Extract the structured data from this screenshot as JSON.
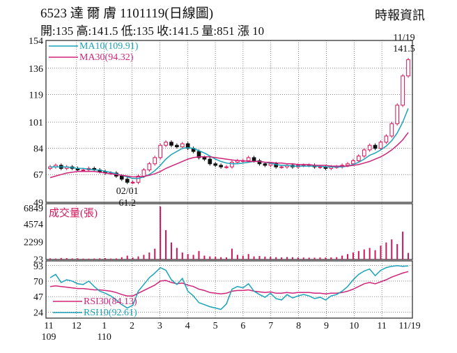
{
  "header": {
    "title": "6523 達 爾 膚 1101119(日線圖)",
    "source": "時報資訊",
    "ohlc": "開:135 高:141.5 低:135 收:141.5 量:851 漲 10"
  },
  "colors": {
    "up": "#d4145a",
    "down": "#111111",
    "ma10": "#1aa3b8",
    "ma30": "#d0237a",
    "rsi30": "#d0237a",
    "rsi10": "#1aa3b8",
    "volume": "#d4145a",
    "grid": "#222222"
  },
  "chart_data": [
    {
      "type": "candlestick",
      "panel": "price",
      "y_ticks": [
        154,
        136,
        119,
        101,
        84,
        67,
        49
      ],
      "ylim": [
        49,
        154
      ],
      "legend": [
        {
          "label": "MA10(109.91)",
          "color": "#1aa3b8"
        },
        {
          "label": "MA30(94.32)",
          "color": "#d0237a"
        }
      ],
      "annotations": [
        {
          "date_label": "02/01",
          "value_label": "61.2",
          "kind": "low"
        },
        {
          "date_label": "11/19",
          "value_label": "141.5",
          "kind": "high"
        }
      ],
      "months": [
        {
          "label": "11",
          "year": "109"
        },
        {
          "label": "12",
          "year": ""
        },
        {
          "label": "1",
          "year": "110"
        },
        {
          "label": "2",
          "year": ""
        },
        {
          "label": "3",
          "year": ""
        },
        {
          "label": "4",
          "year": ""
        },
        {
          "label": "5",
          "year": ""
        },
        {
          "label": "6",
          "year": ""
        },
        {
          "label": "7",
          "year": ""
        },
        {
          "label": "8",
          "year": ""
        },
        {
          "label": "9",
          "year": ""
        },
        {
          "label": "10",
          "year": ""
        },
        {
          "label": "11",
          "year": ""
        },
        {
          "label": "11/19",
          "year": ""
        }
      ],
      "series": [
        {
          "name": "close",
          "values": [
            72,
            73,
            71,
            72,
            71,
            70,
            70,
            71,
            70,
            69,
            68,
            68,
            66,
            64,
            62,
            62,
            66,
            70,
            74,
            78,
            86,
            88,
            86,
            85,
            87,
            84,
            82,
            78,
            77,
            74,
            73,
            72,
            72,
            75,
            76,
            76,
            78,
            76,
            74,
            73,
            74,
            72,
            72,
            73,
            72,
            73,
            73,
            73,
            72,
            72,
            71,
            72,
            72,
            73,
            74,
            76,
            79,
            83,
            86,
            84,
            88,
            92,
            100,
            112,
            131,
            141.5
          ]
        },
        {
          "name": "MA10",
          "values": [
            72,
            72,
            72,
            72,
            71.5,
            71,
            71,
            70.5,
            70,
            70,
            69,
            68.5,
            67.5,
            66.5,
            65.5,
            64.5,
            64.5,
            65.5,
            67,
            69.5,
            73,
            77,
            80,
            82,
            84,
            84.5,
            84,
            82.5,
            81,
            79,
            77,
            75.5,
            74.5,
            74,
            74,
            74.5,
            75,
            75.5,
            75.5,
            75,
            74.5,
            73.5,
            73,
            73,
            72.5,
            72.5,
            72.5,
            72.5,
            72.5,
            72.5,
            72,
            72,
            72,
            72,
            72.5,
            73.5,
            75,
            77,
            79.5,
            81,
            83,
            85.5,
            89,
            94,
            101,
            109.91
          ]
        },
        {
          "name": "MA30",
          "values": [
            65,
            66,
            67,
            68,
            68.5,
            69,
            69,
            69,
            69,
            68.5,
            68,
            67.5,
            67,
            66.5,
            66,
            65.5,
            65.5,
            65.8,
            66.5,
            67.5,
            69,
            71,
            72.5,
            74,
            75.5,
            77,
            78,
            78.5,
            78.5,
            78.5,
            78,
            77.5,
            77,
            76.5,
            76,
            76,
            75.5,
            75.5,
            75.5,
            75,
            75,
            74.5,
            74.5,
            74,
            74,
            73.5,
            73.5,
            73.5,
            73,
            73,
            73,
            72.5,
            72.5,
            72.5,
            72.5,
            73,
            73.5,
            74.5,
            75.5,
            77,
            78.5,
            80.5,
            83,
            86,
            89.5,
            94.32
          ]
        }
      ]
    },
    {
      "type": "bar",
      "panel": "volume",
      "title": "成交量(張)",
      "y_ticks": [
        6849,
        4574,
        2299,
        23
      ],
      "ylim": [
        0,
        6849
      ],
      "values": [
        150,
        120,
        200,
        180,
        140,
        160,
        120,
        110,
        130,
        150,
        180,
        120,
        140,
        300,
        500,
        250,
        400,
        600,
        900,
        1400,
        6849,
        3800,
        2200,
        1500,
        900,
        700,
        600,
        1100,
        500,
        400,
        350,
        300,
        280,
        1400,
        600,
        500,
        700,
        400,
        450,
        380,
        350,
        300,
        280,
        320,
        300,
        260,
        250,
        240,
        230,
        260,
        250,
        270,
        300,
        500,
        700,
        900,
        1100,
        1300,
        1500,
        1200,
        1800,
        2200,
        2600,
        2000,
        3600,
        851
      ]
    },
    {
      "type": "line",
      "panel": "rsi",
      "y_ticks": [
        93,
        70,
        47,
        24
      ],
      "ylim": [
        15,
        100
      ],
      "series": [
        {
          "name": "RSI30(84.13)",
          "values": [
            62,
            63,
            62,
            61,
            60,
            59,
            59,
            58,
            57,
            57,
            56,
            55,
            53,
            50,
            48,
            48,
            52,
            56,
            60,
            64,
            70,
            71,
            68,
            66,
            67,
            64,
            62,
            58,
            56,
            53,
            52,
            51,
            52,
            55,
            56,
            56,
            57,
            55,
            54,
            53,
            54,
            52,
            52,
            53,
            52,
            53,
            53,
            53,
            52,
            52,
            51,
            52,
            52,
            53,
            55,
            58,
            62,
            66,
            68,
            66,
            69,
            72,
            76,
            79,
            82,
            84.13
          ]
        },
        {
          "name": "RSI10(92.61)",
          "values": [
            75,
            80,
            68,
            72,
            70,
            66,
            65,
            70,
            62,
            55,
            52,
            48,
            42,
            35,
            30,
            34,
            55,
            65,
            75,
            82,
            90,
            86,
            72,
            65,
            74,
            55,
            48,
            38,
            35,
            32,
            30,
            28,
            36,
            58,
            62,
            60,
            66,
            55,
            50,
            46,
            52,
            44,
            42,
            50,
            45,
            48,
            50,
            48,
            44,
            46,
            42,
            48,
            50,
            55,
            62,
            72,
            80,
            85,
            88,
            78,
            86,
            90,
            92,
            93,
            92,
            92.61
          ]
        }
      ]
    }
  ]
}
